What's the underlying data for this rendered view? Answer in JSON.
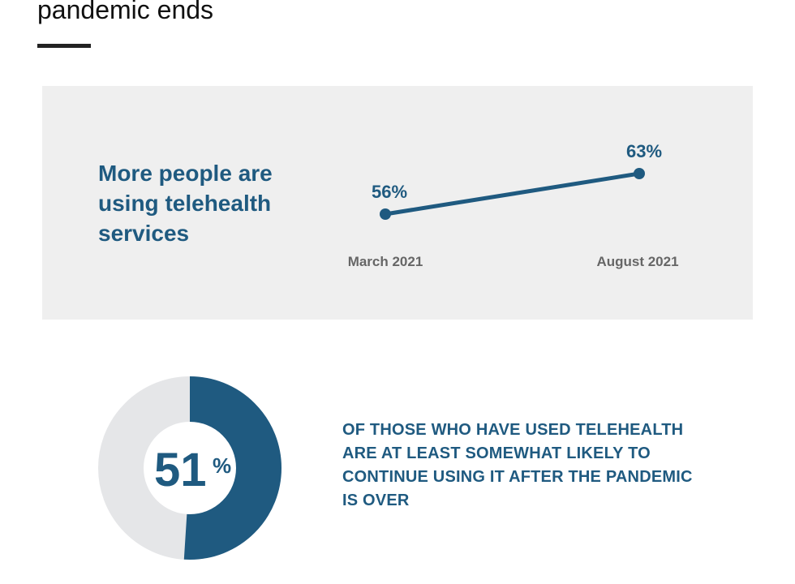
{
  "header": {
    "headline": "pandemic ends"
  },
  "panel": {
    "title": "More people are using telehealth services"
  },
  "chart_data": [
    {
      "type": "line",
      "categories": [
        "March 2021",
        "August 2021"
      ],
      "values": [
        56,
        63
      ],
      "data_labels": [
        "56%",
        "63%"
      ],
      "color": "#1f5a80",
      "label_color": "#666666",
      "grid": false
    },
    {
      "type": "pie",
      "variant": "donut",
      "value": 51,
      "value_label": "51",
      "value_suffix": "%",
      "color": "#1f5a80",
      "remainder_color": "#e5e6e8",
      "caption": "OF THOSE WHO HAVE USED TELEHEALTH ARE AT LEAST SOMEWHAT LIKELY TO CONTINUE USING IT AFTER THE PANDEMIC IS OVER"
    }
  ]
}
